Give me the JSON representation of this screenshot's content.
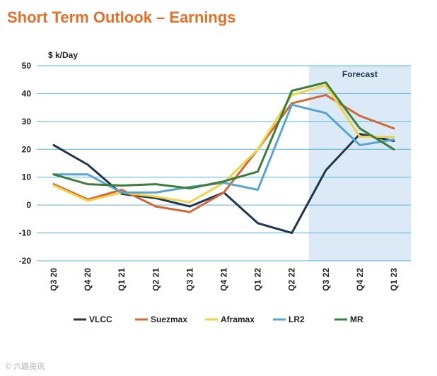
{
  "chart_data": {
    "type": "line",
    "title": "Short Term Outlook – Earnings",
    "ylabel": "$ k/Day",
    "xlabel": "",
    "ylim": [
      -20,
      50
    ],
    "yticks": [
      -20,
      -10,
      0,
      10,
      20,
      30,
      40,
      50
    ],
    "categories": [
      "Q3 20",
      "Q4 20",
      "Q1 21",
      "Q2 21",
      "Q3 21",
      "Q4 21",
      "Q1 22",
      "Q2 22",
      "Q3 22",
      "Q4 22",
      "Q1 23"
    ],
    "forecast": {
      "label": "Forecast",
      "start_category": "Q3 22",
      "color": "#dbeaf6"
    },
    "grid": true,
    "legend_position": "bottom",
    "series": [
      {
        "name": "VLCC",
        "color": "#1f3550",
        "values": [
          21.5,
          14.5,
          4,
          2.5,
          -0.5,
          4.5,
          -6.5,
          -10,
          12.5,
          25.5,
          23
        ]
      },
      {
        "name": "Suezmax",
        "color": "#d2683a",
        "values": [
          7.5,
          2,
          5.5,
          -0.5,
          -2.5,
          4.5,
          20,
          36.5,
          39.5,
          32,
          27.5
        ]
      },
      {
        "name": "Aframax",
        "color": "#efd34a",
        "values": [
          7,
          1.5,
          4.5,
          3,
          1,
          8,
          20,
          39.5,
          43,
          24.5,
          24.5
        ]
      },
      {
        "name": "LR2",
        "color": "#5ba4cd",
        "values": [
          11,
          11,
          4.5,
          4.5,
          6.5,
          8,
          5.5,
          36,
          33,
          21.5,
          23.5
        ]
      },
      {
        "name": "MR",
        "color": "#3d7d3a",
        "values": [
          11,
          7.5,
          7,
          7.5,
          6,
          8.5,
          12,
          41,
          44,
          27.5,
          20
        ]
      }
    ]
  },
  "footer": {
    "watermark": "© 六路资讯"
  }
}
